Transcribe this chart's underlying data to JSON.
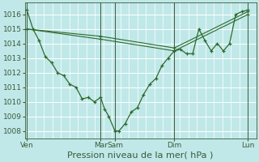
{
  "bg_color": "#c0e8e8",
  "grid_color": "#ffffff",
  "line_color": "#2d6a2d",
  "vline_color": "#3a5a3a",
  "ylim": [
    1007.5,
    1016.8
  ],
  "yticks": [
    1008,
    1009,
    1010,
    1011,
    1012,
    1013,
    1014,
    1015,
    1016
  ],
  "xlabel": "Pression niveau de la mer( hPa )",
  "xlabel_fontsize": 8,
  "tick_fontsize": 6.5,
  "xtick_labels": [
    "Ven",
    "Mar",
    "Sam",
    "Dim",
    "Lun"
  ],
  "xtick_positions": [
    0,
    36,
    43,
    72,
    108
  ],
  "vline_positions": [
    0,
    36,
    43,
    72,
    108
  ],
  "xlim": [
    -1,
    112
  ],
  "line1_x": [
    0,
    3,
    6,
    9,
    12,
    15,
    18,
    21,
    24,
    27,
    30,
    33,
    36,
    38,
    40,
    43,
    45,
    48,
    51,
    54,
    57,
    60,
    63,
    66,
    69,
    72,
    75,
    78,
    81,
    84,
    87,
    90,
    93,
    96,
    99,
    102,
    105,
    108
  ],
  "line1_y": [
    1016.3,
    1015.0,
    1014.2,
    1013.1,
    1012.7,
    1012.0,
    1011.8,
    1011.2,
    1011.0,
    1010.2,
    1010.3,
    1010.0,
    1010.3,
    1009.5,
    1009.0,
    1008.0,
    1008.0,
    1008.5,
    1009.3,
    1009.6,
    1010.5,
    1011.2,
    1011.6,
    1012.5,
    1013.0,
    1013.5,
    1013.6,
    1013.3,
    1013.3,
    1015.0,
    1014.2,
    1013.5,
    1014.0,
    1013.5,
    1014.0,
    1016.0,
    1016.2,
    1016.3
  ],
  "line2_x": [
    0,
    36,
    72,
    108
  ],
  "line2_y": [
    1015.0,
    1014.5,
    1013.7,
    1016.2
  ],
  "line3_x": [
    0,
    36,
    72,
    108
  ],
  "line3_y": [
    1015.0,
    1014.3,
    1013.5,
    1016.0
  ]
}
